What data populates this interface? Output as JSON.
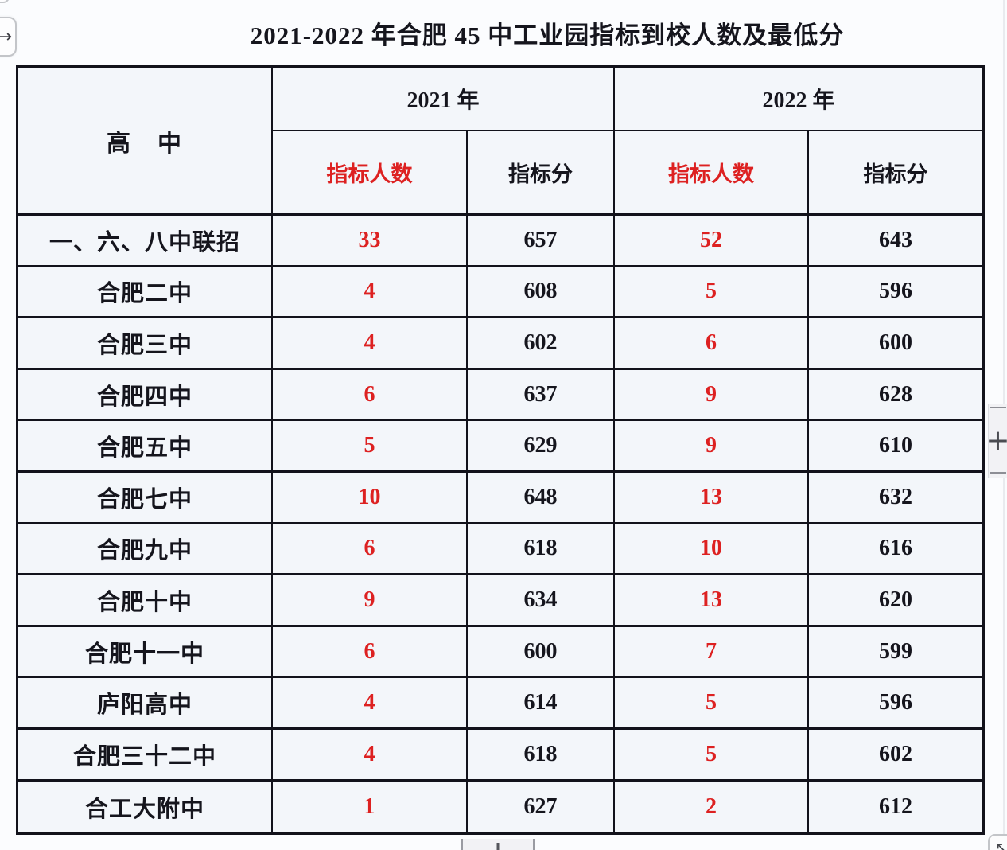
{
  "title": "2021-2022 年合肥 45 中工业园指标到校人数及最低分",
  "colors": {
    "page_bg": "#fbfcfe",
    "cell_bg": "#f3f6fa",
    "border": "#12121b",
    "red": "#dd2121",
    "ink": "#15151d"
  },
  "table": {
    "corner_header": "高　中",
    "year_2021": "2021 年",
    "year_2022": "2022 年",
    "subheaders": [
      "指标人数",
      "指标分",
      "指标人数",
      "指标分"
    ],
    "rows": [
      {
        "school": "一、六、八中联招",
        "count_2021": "33",
        "score_2021": "657",
        "count_2022": "52",
        "score_2022": "643"
      },
      {
        "school": "合肥二中",
        "count_2021": "4",
        "score_2021": "608",
        "count_2022": "5",
        "score_2022": "596"
      },
      {
        "school": "合肥三中",
        "count_2021": "4",
        "score_2021": "602",
        "count_2022": "6",
        "score_2022": "600"
      },
      {
        "school": "合肥四中",
        "count_2021": "6",
        "score_2021": "637",
        "count_2022": "9",
        "score_2022": "628"
      },
      {
        "school": "合肥五中",
        "count_2021": "5",
        "score_2021": "629",
        "count_2022": "9",
        "score_2022": "610"
      },
      {
        "school": "合肥七中",
        "count_2021": "10",
        "score_2021": "648",
        "count_2022": "13",
        "score_2022": "632"
      },
      {
        "school": "合肥九中",
        "count_2021": "6",
        "score_2021": "618",
        "count_2022": "10",
        "score_2022": "616"
      },
      {
        "school": "合肥十中",
        "count_2021": "9",
        "score_2021": "634",
        "count_2022": "13",
        "score_2022": "620"
      },
      {
        "school": "合肥十一中",
        "count_2021": "6",
        "score_2021": "600",
        "count_2022": "7",
        "score_2022": "599"
      },
      {
        "school": "庐阳高中",
        "count_2021": "4",
        "score_2021": "614",
        "count_2022": "5",
        "score_2022": "596"
      },
      {
        "school": "合肥三十二中",
        "count_2021": "4",
        "score_2021": "618",
        "count_2022": "5",
        "score_2022": "602"
      },
      {
        "school": "合工大附中",
        "count_2021": "1",
        "score_2021": "627",
        "count_2022": "2",
        "score_2022": "612"
      }
    ]
  },
  "controls": {
    "scroll_arrow_glyph": "→",
    "plus_glyph": "+",
    "corner_arrow_glyph": "↖"
  }
}
